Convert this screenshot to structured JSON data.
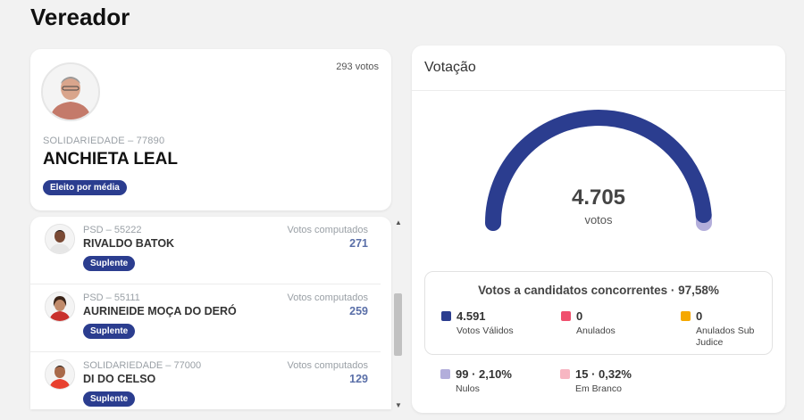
{
  "page": {
    "title": "Vereador"
  },
  "elected": {
    "votes": "293 votos",
    "party": "SOLIDARIEDADE – 77890",
    "name": "ANCHIETA LEAL",
    "status": "Eleito por média"
  },
  "candidates": [
    {
      "party": "PSD – 55222",
      "name": "RIVALDO BATOK",
      "votes_label": "Votos computados",
      "votes": "271",
      "status": "Suplente"
    },
    {
      "party": "PSD – 55111",
      "name": "AURINEIDE MOÇA DO DERÓ",
      "votes_label": "Votos computados",
      "votes": "259",
      "status": "Suplente"
    },
    {
      "party": "SOLIDARIEDADE – 77000",
      "name": "DI DO CELSO",
      "votes_label": "Votos computados",
      "votes": "129",
      "status": "Suplente"
    }
  ],
  "voting": {
    "title": "Votação",
    "total": "4.705",
    "total_label": "votos",
    "gauge_fraction": 0.9758,
    "gauge_color": "#2b3d8f",
    "gauge_rest_color": "#b3aedb",
    "summary_title": "Votos a candidatos concorrentes · 97,58%",
    "stats": [
      {
        "value": "4.591",
        "label": "Votos Válidos",
        "color": "#2b3d8f"
      },
      {
        "value": "0",
        "label": "Anulados",
        "color": "#f0506e"
      },
      {
        "value": "0",
        "label": "Anulados Sub Judice",
        "color": "#f5a800"
      },
      {
        "value": "99 · 2,10%",
        "label": "Nulos",
        "color": "#b3aedb"
      },
      {
        "value": "15 · 0,32%",
        "label": "Em Branco",
        "color": "#f7b6c2"
      }
    ]
  }
}
